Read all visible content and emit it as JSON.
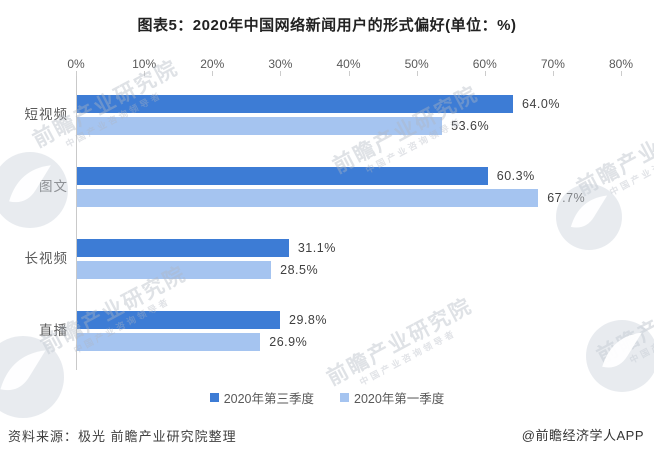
{
  "title": "图表5：2020年中国网络新闻用户的形式偏好(单位：%)",
  "chart_data": {
    "type": "bar",
    "orientation": "horizontal",
    "title": "图表5：2020年中国网络新闻用户的形式偏好(单位：%)",
    "categories": [
      "短视频",
      "图文",
      "长视频",
      "直播"
    ],
    "series": [
      {
        "name": "2020年第三季度",
        "color": "#3D7CD5",
        "values": [
          64.0,
          60.3,
          31.1,
          29.8
        ]
      },
      {
        "name": "2020年第一季度",
        "color": "#A5C4F0",
        "values": [
          53.6,
          67.7,
          28.5,
          26.9
        ]
      }
    ],
    "value_labels": [
      [
        "64.0%",
        "60.3%",
        "31.1%",
        "29.8%"
      ],
      [
        "53.6%",
        "67.7%",
        "28.5%",
        "26.9%"
      ]
    ],
    "axis_ticks": [
      "0%",
      "10%",
      "20%",
      "30%",
      "40%",
      "50%",
      "60%",
      "70%",
      "80%"
    ],
    "xlim": [
      0,
      80
    ],
    "xlabel": "",
    "ylabel": "",
    "grid": false,
    "legend_position": "bottom"
  },
  "footer": {
    "source": "资料来源：极光 前瞻产业研究院整理",
    "credit": "@前瞻经济学人APP"
  },
  "watermark": {
    "text": "前瞻产业研究院",
    "subtext": "中国产业咨询领导者"
  },
  "colors": {
    "series_q3": "#3D7CD5",
    "series_q1": "#A5C4F0",
    "axis_line": "#c9c9c9",
    "text_muted": "#595959"
  }
}
